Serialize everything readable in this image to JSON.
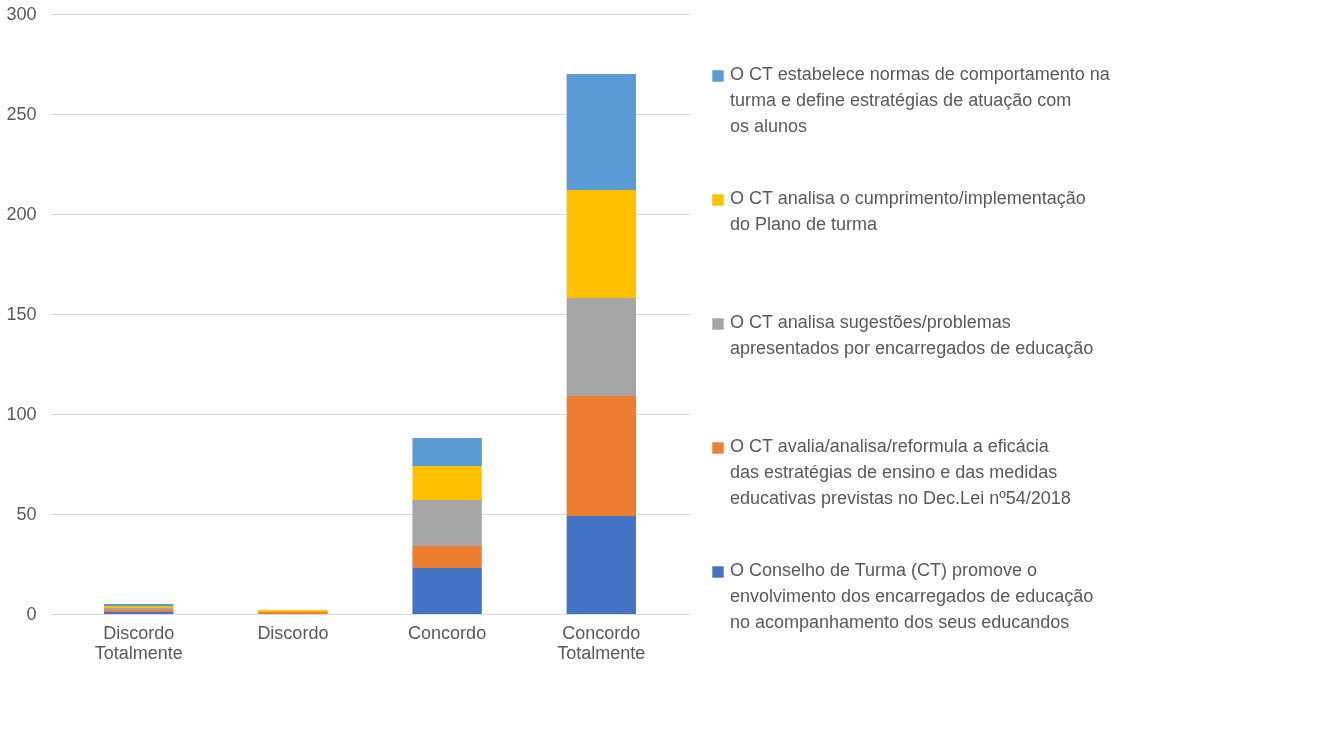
{
  "chart_data": {
    "type": "bar",
    "stacked": true,
    "categories": [
      "Discordo Totalmente",
      "Discordo",
      "Concordo",
      "Concordo Totalmente"
    ],
    "series": [
      {
        "name": "O Conselho de Turma (CT) promove o envolvimento dos encarregados de educação no acompanhamento dos seus educandos",
        "color": "#4472c4",
        "values": [
          1,
          0,
          23,
          49
        ]
      },
      {
        "name": "O CT avalia/analisa/reformula a eficácia das estratégias de ensino e das medidas educativas previstas no Dec.Lei nº54/2018",
        "color": "#ed7d31",
        "values": [
          1,
          1,
          11,
          60
        ]
      },
      {
        "name": "O CT analisa sugestões/problemas apresentados por encarregados de educação",
        "color": "#a5a5a5",
        "values": [
          1,
          0,
          23,
          49
        ]
      },
      {
        "name": "O CT analisa o cumprimento/implementação do Plano de turma",
        "color": "#ffc000",
        "values": [
          1,
          1,
          17,
          54
        ]
      },
      {
        "name": "O CT estabelece normas de comportamento na turma e define estratégias de atuação com os alunos",
        "color": "#5b9bd5",
        "values": [
          1,
          0,
          14,
          58
        ]
      }
    ],
    "ylim": [
      0,
      300
    ],
    "yticks": [
      0,
      50,
      100,
      150,
      200,
      250,
      300
    ],
    "grid": "y",
    "legend": "right"
  }
}
